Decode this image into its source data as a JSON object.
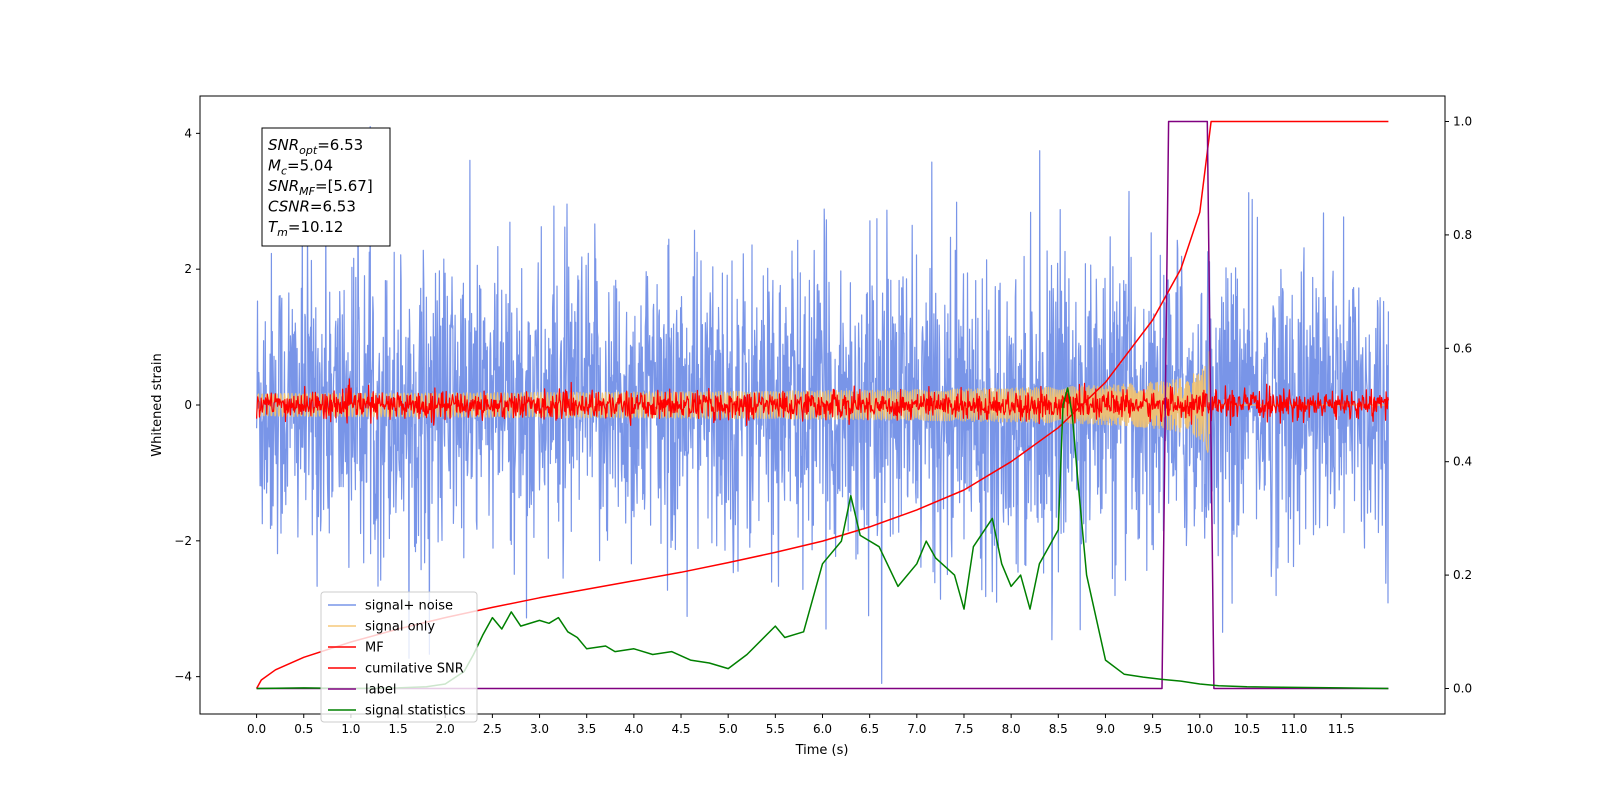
{
  "chart_data": {
    "type": "line",
    "xlabel": "Time (s)",
    "ylabel_left": "Whitened strain",
    "ylabel_right": "",
    "xlim": [
      -0.6,
      12.6
    ],
    "ylim_left": [
      -4.55,
      4.55
    ],
    "ylim_right": [
      -0.045,
      1.045
    ],
    "x_ticks": [
      0.0,
      0.5,
      1.0,
      1.5,
      2.0,
      2.5,
      3.0,
      3.5,
      4.0,
      4.5,
      5.0,
      5.5,
      6.0,
      6.5,
      7.0,
      7.5,
      8.0,
      8.5,
      9.0,
      9.5,
      10.0,
      10.5,
      11.0,
      11.5
    ],
    "x_tick_labels": [
      "0.0",
      "0.5",
      "1.0",
      "1.5",
      "2.0",
      "2.5",
      "3.0",
      "3.5",
      "4.0",
      "4.5",
      "5.0",
      "5.5",
      "6.0",
      "6.5",
      "7.0",
      "7.5",
      "8.0",
      "8.5",
      "9.0",
      "9.5",
      "10.0",
      "10.5",
      "11.0",
      "11.5"
    ],
    "y_ticks_left": [
      -4,
      -2,
      0,
      2,
      4
    ],
    "y_tick_labels_left": [
      "−4",
      "−2",
      "0",
      "2",
      "4"
    ],
    "y_ticks_right": [
      0.0,
      0.2,
      0.4,
      0.6,
      0.8,
      1.0
    ],
    "y_tick_labels_right": [
      "0.0",
      "0.2",
      "0.4",
      "0.6",
      "0.8",
      "1.0"
    ],
    "grid": false,
    "legend_position": "lower-left",
    "annotation": [
      {
        "sym": "SNR",
        "sub": "opt",
        "value": "=6.53"
      },
      {
        "sym": "M",
        "sub": "c",
        "value": "=5.04"
      },
      {
        "sym": "SNR",
        "sub": "MF",
        "value": "=[5.67]"
      },
      {
        "sym": "CSNR",
        "sub": "",
        "value": "=6.53"
      },
      {
        "sym": "T",
        "sub": "m",
        "value": "=10.12"
      }
    ],
    "series": [
      {
        "name": "signal+ noise",
        "color": "#6a8ae6",
        "axis": "left",
        "kind": "noise",
        "x_range": [
          0.0,
          12.0
        ],
        "amplitude_range": [
          -4.1,
          4.1
        ]
      },
      {
        "name": "signal only",
        "color": "#f5c36b",
        "axis": "left",
        "kind": "chirp",
        "x_range": [
          0.0,
          12.0
        ],
        "peak_time": 10.1,
        "peak_amplitude": 0.8
      },
      {
        "name": "MF",
        "color": "#ff0000",
        "axis": "left",
        "kind": "noise",
        "x_range": [
          0.0,
          12.0
        ],
        "amplitude_range": [
          -0.3,
          0.65
        ]
      },
      {
        "name": "cumilative SNR",
        "color": "#ff0000",
        "axis": "right",
        "x": [
          0.0,
          0.05,
          0.2,
          0.5,
          1.0,
          1.5,
          2.0,
          2.5,
          3.0,
          3.5,
          4.0,
          4.5,
          5.0,
          5.5,
          6.0,
          6.5,
          7.0,
          7.5,
          8.0,
          8.5,
          9.0,
          9.5,
          9.8,
          10.0,
          10.12,
          10.5,
          11.0,
          11.5,
          12.0
        ],
        "y": [
          0.0,
          0.015,
          0.033,
          0.055,
          0.082,
          0.105,
          0.125,
          0.143,
          0.16,
          0.175,
          0.19,
          0.205,
          0.222,
          0.24,
          0.26,
          0.285,
          0.315,
          0.35,
          0.4,
          0.46,
          0.54,
          0.65,
          0.74,
          0.84,
          1.0,
          1.0,
          1.0,
          1.0,
          1.0
        ]
      },
      {
        "name": "label",
        "color": "#800080",
        "axis": "right",
        "x": [
          0.0,
          9.6,
          9.67,
          10.08,
          10.15,
          12.0
        ],
        "y": [
          0.0,
          0.0,
          1.0,
          1.0,
          0.0,
          0.0
        ]
      },
      {
        "name": "signal statistics",
        "color": "#008000",
        "axis": "right",
        "x": [
          0.0,
          0.5,
          1.0,
          1.5,
          1.8,
          2.0,
          2.2,
          2.3,
          2.4,
          2.5,
          2.6,
          2.7,
          2.8,
          3.0,
          3.1,
          3.2,
          3.3,
          3.4,
          3.5,
          3.7,
          3.8,
          4.0,
          4.2,
          4.4,
          4.6,
          4.8,
          5.0,
          5.2,
          5.5,
          5.6,
          5.8,
          6.0,
          6.2,
          6.3,
          6.4,
          6.6,
          6.8,
          7.0,
          7.1,
          7.2,
          7.4,
          7.5,
          7.6,
          7.8,
          7.9,
          8.0,
          8.1,
          8.2,
          8.3,
          8.4,
          8.5,
          8.55,
          8.6,
          8.65,
          8.7,
          8.8,
          9.0,
          9.2,
          9.4,
          9.6,
          9.8,
          10.0,
          10.2,
          10.5,
          11.0,
          11.5,
          12.0
        ],
        "y": [
          0.0,
          0.001,
          0.0,
          0.001,
          0.003,
          0.008,
          0.03,
          0.06,
          0.095,
          0.125,
          0.105,
          0.135,
          0.11,
          0.12,
          0.115,
          0.125,
          0.1,
          0.09,
          0.07,
          0.075,
          0.065,
          0.07,
          0.06,
          0.065,
          0.05,
          0.045,
          0.035,
          0.06,
          0.11,
          0.09,
          0.1,
          0.22,
          0.26,
          0.34,
          0.27,
          0.25,
          0.18,
          0.22,
          0.26,
          0.23,
          0.2,
          0.14,
          0.25,
          0.3,
          0.22,
          0.18,
          0.2,
          0.14,
          0.22,
          0.25,
          0.28,
          0.5,
          0.53,
          0.48,
          0.38,
          0.2,
          0.05,
          0.025,
          0.02,
          0.016,
          0.013,
          0.008,
          0.005,
          0.003,
          0.002,
          0.001,
          0.0
        ]
      }
    ]
  }
}
